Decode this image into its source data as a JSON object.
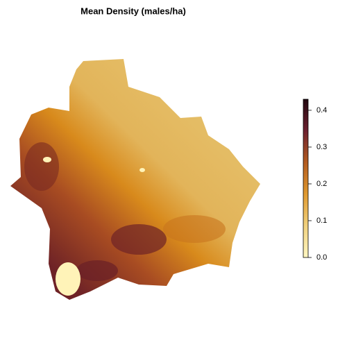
{
  "map": {
    "title": "Mean Density (males/ha)",
    "colorbar": {
      "lim": [
        0,
        0.43
      ],
      "ticks": [
        {
          "value": 0,
          "label": "0.0"
        },
        0.1,
        0.2,
        0.3,
        0.4
      ],
      "colors": [
        "#fff7c2",
        "#f1d27f",
        "#e09a30",
        "#b45c1f",
        "#6d2130",
        "#220810"
      ]
    }
  }
}
